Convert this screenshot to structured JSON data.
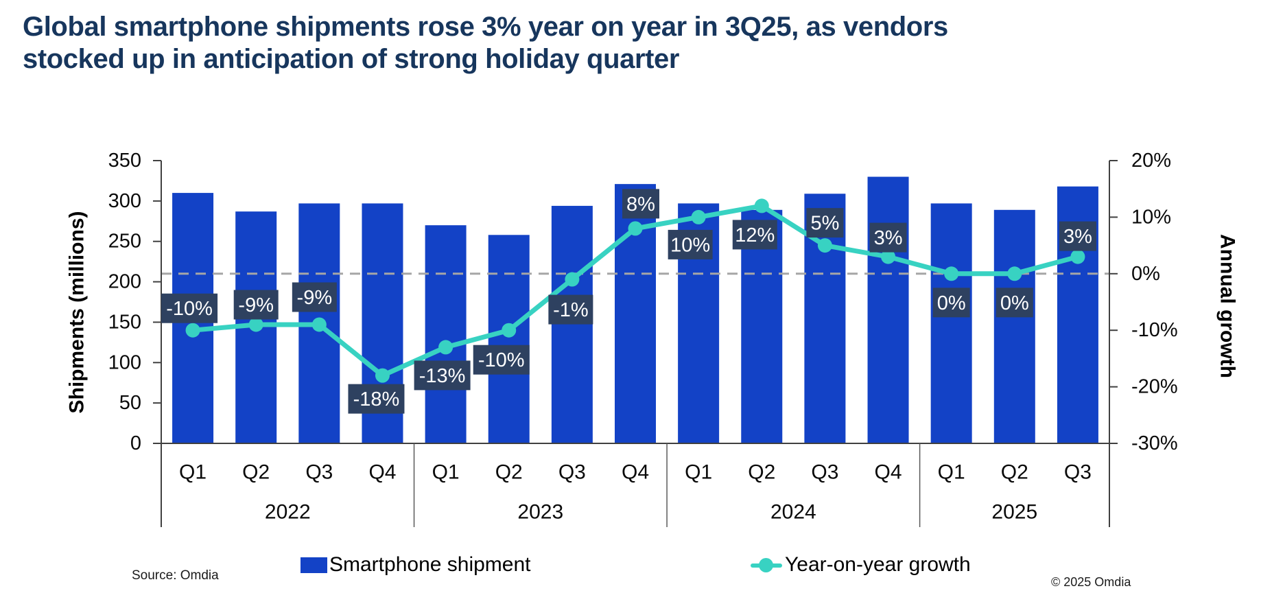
{
  "title": {
    "line1": "Global smartphone shipments rose 3% year on year in 3Q25, as vendors",
    "line2": "stocked up in anticipation of strong holiday quarter"
  },
  "chart_data": {
    "type": "bar+line",
    "category_groups": [
      {
        "year": "2022",
        "quarters": [
          "Q1",
          "Q2",
          "Q3",
          "Q4"
        ]
      },
      {
        "year": "2023",
        "quarters": [
          "Q1",
          "Q2",
          "Q3",
          "Q4"
        ]
      },
      {
        "year": "2024",
        "quarters": [
          "Q1",
          "Q2",
          "Q3",
          "Q4"
        ]
      },
      {
        "year": "2025",
        "quarters": [
          "Q1",
          "Q2",
          "Q3"
        ]
      }
    ],
    "series": [
      {
        "name": "Smartphone shipment",
        "type": "bar",
        "unit": "millions",
        "values": [
          310,
          287,
          297,
          297,
          270,
          258,
          294,
          321,
          297,
          289,
          309,
          330,
          297,
          289,
          318
        ]
      },
      {
        "name": "Year-on-year growth",
        "type": "line",
        "unit": "percent",
        "values": [
          -10,
          -9,
          -9,
          -18,
          -13,
          -10,
          -1,
          8,
          10,
          12,
          5,
          3,
          0,
          0,
          3
        ],
        "labels": [
          "-10%",
          "-9%",
          "-9%",
          "-18%",
          "-13%",
          "-10%",
          "-1%",
          "8%",
          "10%",
          "12%",
          "5%",
          "3%",
          "0%",
          "0%",
          "3%"
        ]
      }
    ],
    "left_axis": {
      "title": "Shipments (millions)",
      "min": 0,
      "max": 350,
      "ticks": [
        0,
        50,
        100,
        150,
        200,
        250,
        300,
        350
      ]
    },
    "right_axis": {
      "title": "Annual growth",
      "min": -30,
      "max": 20,
      "ticks": [
        20,
        10,
        0,
        -10,
        -20,
        -30
      ],
      "tick_labels": [
        "20%",
        "10%",
        "0%",
        "-10%",
        "-20%",
        "-30%"
      ]
    },
    "gridline_at_zero_growth": true,
    "legend_position": "bottom"
  },
  "legend": [
    {
      "label": "Smartphone shipment",
      "swatch": "bar"
    },
    {
      "label": "Year-on-year growth",
      "swatch": "line-marker"
    }
  ],
  "source": "Source: Omdia",
  "copyright": "© 2025 Omdia",
  "colors": {
    "bar": "#1342c6",
    "line": "#38d2c2",
    "label_box": "#2e4160",
    "label_text": "#ffffff",
    "title_text": "#17365d",
    "axis_line": "#404040",
    "separator_line": "#595959",
    "zero_gridline": "#a6a6a6",
    "tick_text": "#0a0a0a"
  }
}
